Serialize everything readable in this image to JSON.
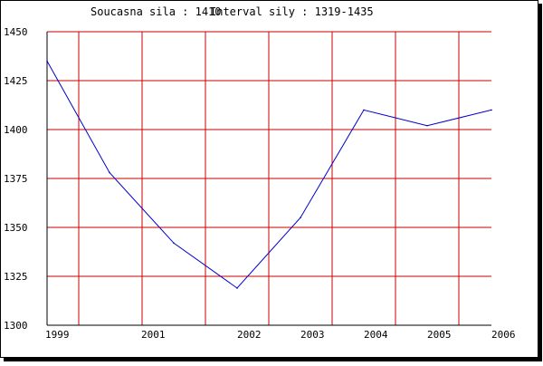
{
  "header": {
    "current_label": "Soucasna sila : 1410",
    "interval_label": "Interval sily : 1319-1435"
  },
  "chart_data": {
    "type": "line",
    "title": "",
    "xlabel": "",
    "ylabel": "",
    "ylim": [
      1300,
      1450
    ],
    "y_ticks": [
      1450,
      1425,
      1400,
      1375,
      1350,
      1325,
      1300
    ],
    "x_tick_labels": [
      "1999",
      "2001",
      "2002",
      "2003",
      "2004",
      "2005",
      "2006"
    ],
    "grid": true,
    "series": [
      {
        "color": "#0000cc",
        "points": [
          {
            "x": "1999",
            "y": 1435
          },
          {
            "x": "",
            "y": 1378
          },
          {
            "x": "2001",
            "y": 1342
          },
          {
            "x": "2002",
            "y": 1319
          },
          {
            "x": "2003",
            "y": 1355
          },
          {
            "x": "2004",
            "y": 1410
          },
          {
            "x": "2005",
            "y": 1402
          },
          {
            "x": "2006",
            "y": 1410
          }
        ]
      }
    ],
    "colors": {
      "grid": "#cc0000",
      "axis": "#000000",
      "frame": "#000000",
      "shadow": "#000000",
      "background": "#ffffff"
    }
  }
}
